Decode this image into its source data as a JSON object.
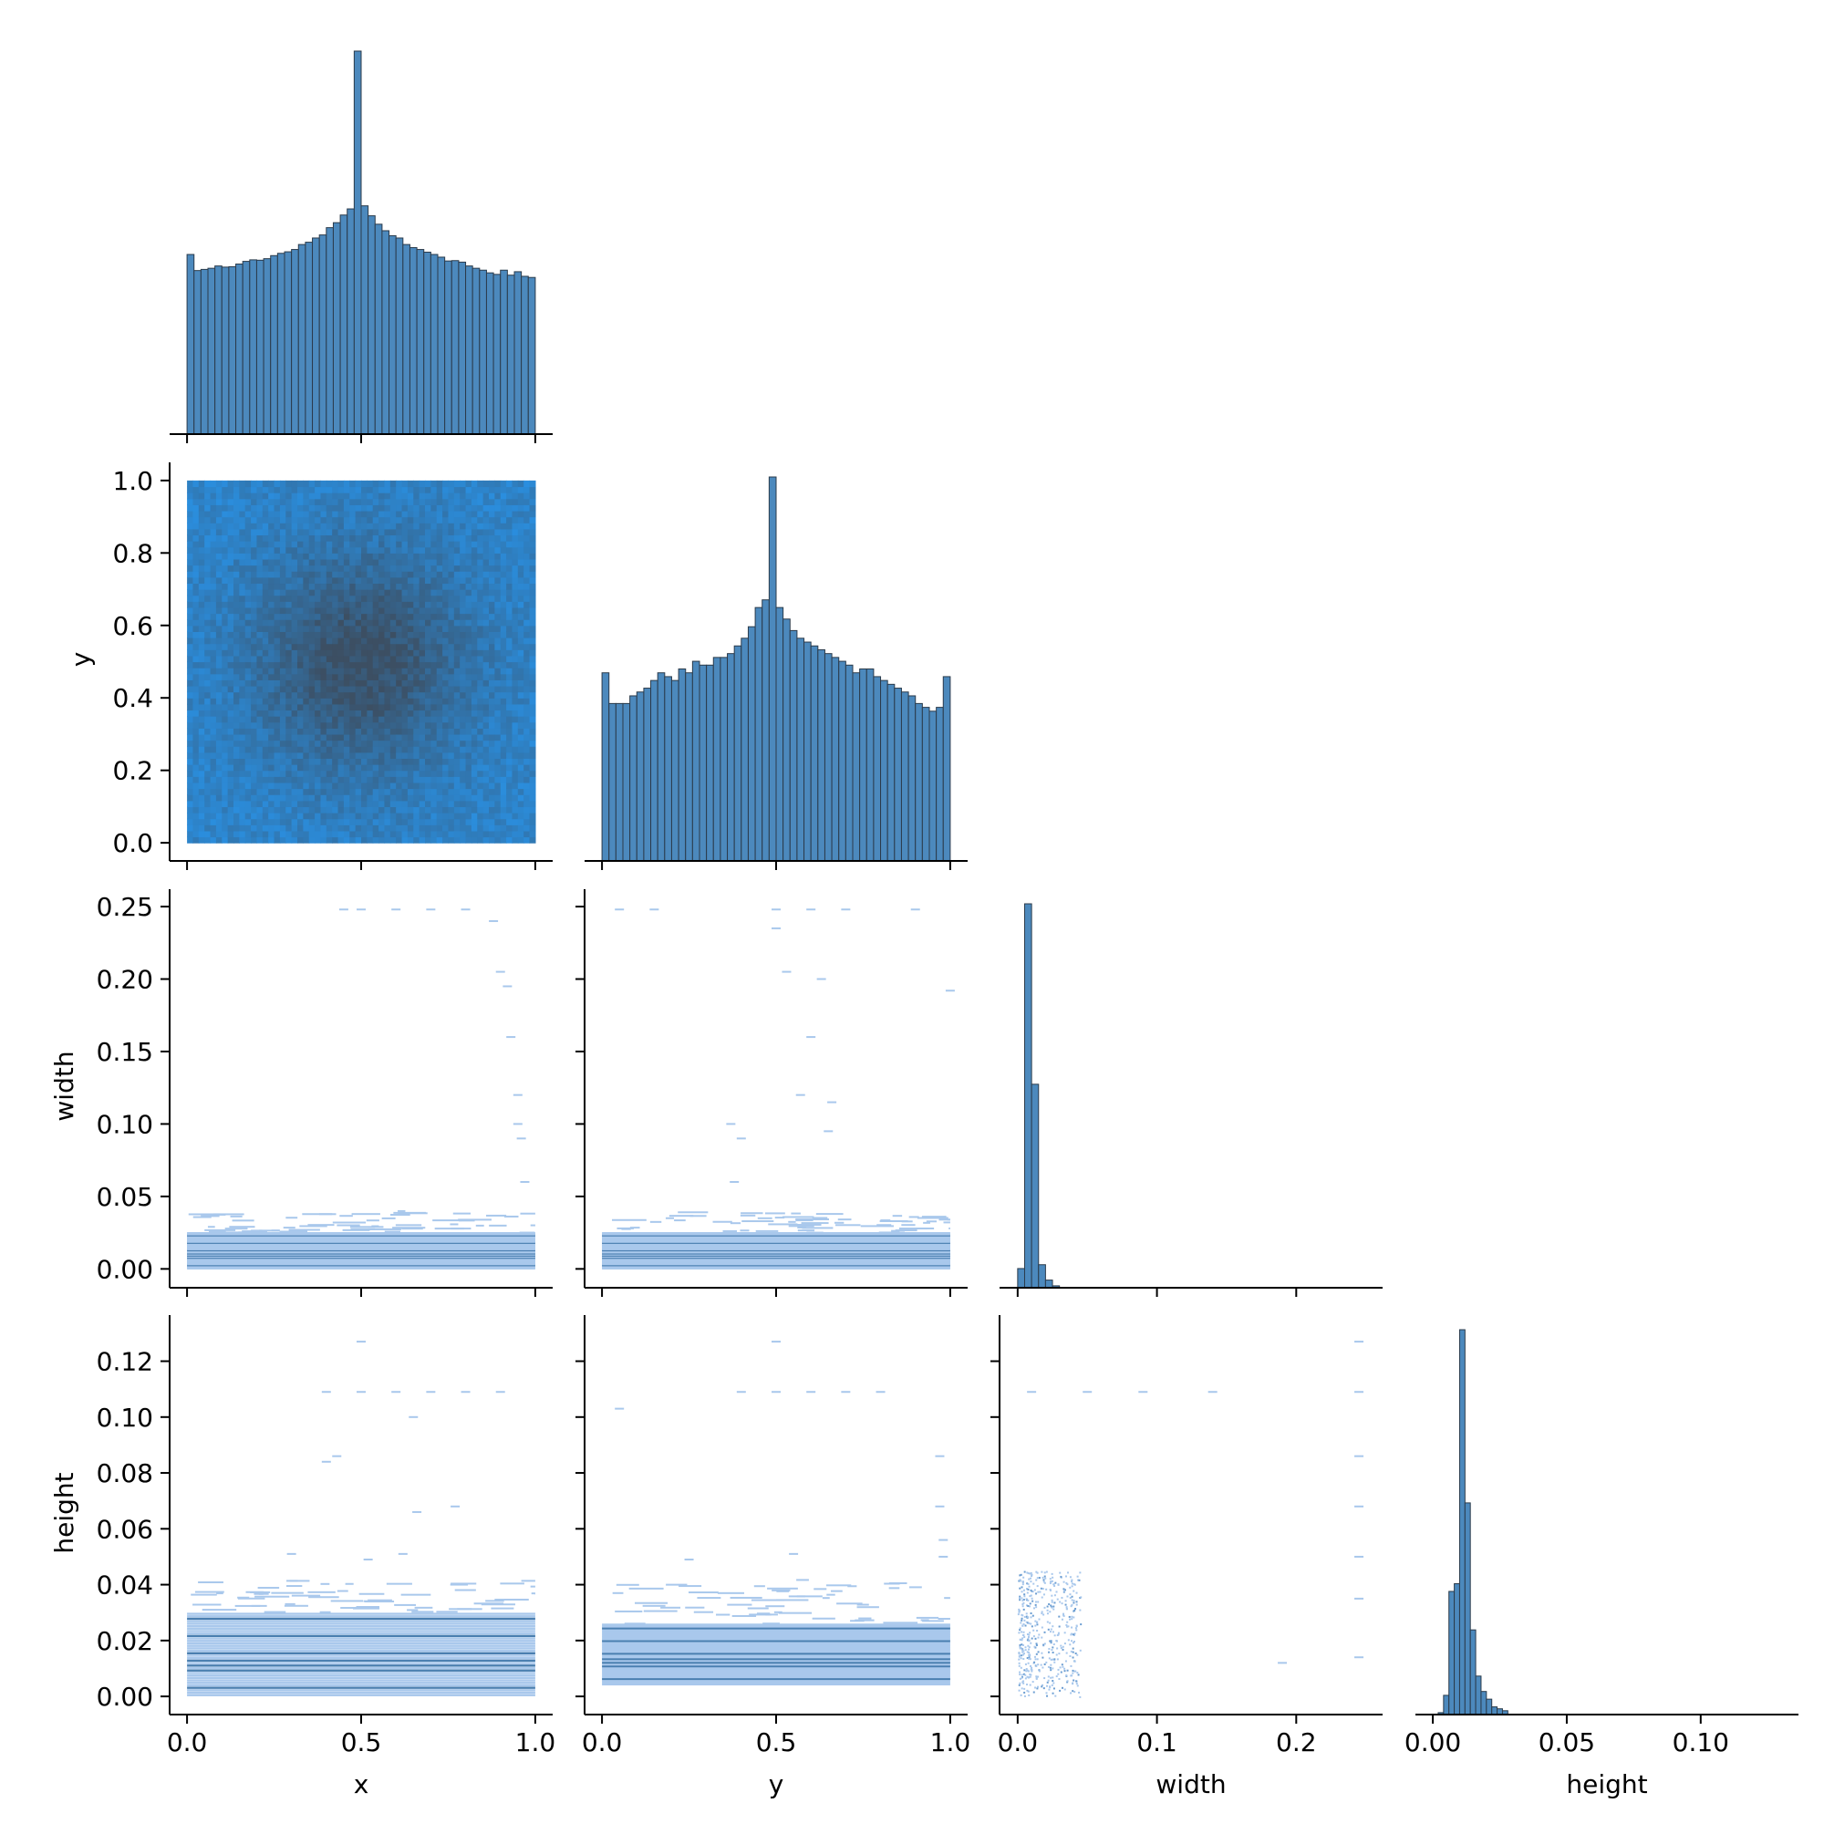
{
  "chart_data": {
    "type": "pairplot",
    "variables": [
      "x",
      "y",
      "width",
      "height"
    ],
    "colors": {
      "bar": "#4c89bd",
      "dark": "#3c4f63",
      "bright": "#2a8fe0",
      "light": "#a9c8ec",
      "axis": "#000000"
    },
    "x_ticks": {
      "x": [
        "0.0",
        "0.5",
        "1.0"
      ],
      "y": [
        "0.0",
        "0.5",
        "1.0"
      ],
      "width": [
        "0.0",
        "0.1",
        "0.2"
      ],
      "height": [
        "0.00",
        "0.05",
        "0.10"
      ]
    },
    "y_ticks": {
      "y": [
        "1.0",
        "0.8",
        "0.6",
        "0.4",
        "0.2",
        "0.0"
      ],
      "width": [
        "0.25",
        "0.20",
        "0.15",
        "0.10",
        "0.05",
        "0.00"
      ],
      "height": [
        "0.12",
        "0.10",
        "0.08",
        "0.06",
        "0.04",
        "0.02",
        "0.00"
      ]
    },
    "axis_ranges": {
      "x": [
        -0.05,
        1.05
      ],
      "y": [
        -0.05,
        1.05
      ],
      "width": [
        -0.013,
        0.262
      ],
      "height": [
        -0.0065,
        0.1365
      ]
    },
    "hist_x": {
      "variable": "x",
      "bins": 50,
      "range": [
        0,
        1
      ],
      "values": [
        0.469,
        0.427,
        0.43,
        0.433,
        0.439,
        0.436,
        0.437,
        0.444,
        0.451,
        0.455,
        0.454,
        0.458,
        0.466,
        0.472,
        0.476,
        0.482,
        0.495,
        0.501,
        0.512,
        0.52,
        0.539,
        0.552,
        0.572,
        0.588,
        1.0,
        0.596,
        0.57,
        0.548,
        0.531,
        0.518,
        0.512,
        0.495,
        0.487,
        0.482,
        0.475,
        0.469,
        0.462,
        0.452,
        0.453,
        0.449,
        0.439,
        0.433,
        0.428,
        0.421,
        0.417,
        0.428,
        0.415,
        0.424,
        0.412,
        0.409
      ]
    },
    "hist_y": {
      "variable": "y",
      "bins": 50,
      "range": [
        0,
        1
      ],
      "values": [
        0.49,
        0.41,
        0.41,
        0.41,
        0.43,
        0.44,
        0.45,
        0.47,
        0.49,
        0.48,
        0.47,
        0.5,
        0.49,
        0.52,
        0.51,
        0.51,
        0.53,
        0.53,
        0.54,
        0.56,
        0.58,
        0.61,
        0.66,
        0.68,
        1.0,
        0.66,
        0.63,
        0.6,
        0.58,
        0.57,
        0.56,
        0.55,
        0.54,
        0.53,
        0.52,
        0.51,
        0.49,
        0.5,
        0.5,
        0.48,
        0.47,
        0.46,
        0.45,
        0.44,
        0.43,
        0.41,
        0.4,
        0.39,
        0.4,
        0.48
      ]
    },
    "hist_width": {
      "variable": "width",
      "bins_x": [
        0.0,
        0.005,
        0.01,
        0.015,
        0.02,
        0.025,
        0.03
      ],
      "values": [
        0.05,
        1.0,
        0.53,
        0.06,
        0.02,
        0.005
      ]
    },
    "hist_height": {
      "variable": "height",
      "bins_x": [
        0.002,
        0.004,
        0.006,
        0.008,
        0.01,
        0.012,
        0.014,
        0.016,
        0.018,
        0.02,
        0.022,
        0.024,
        0.026,
        0.028
      ],
      "values": [
        0.005,
        0.05,
        0.32,
        0.34,
        1.0,
        0.55,
        0.22,
        0.1,
        0.06,
        0.04,
        0.02,
        0.015,
        0.01
      ]
    },
    "heatmap_xy": {
      "x_var": "x",
      "y_var": "y",
      "range_x": [
        0,
        1
      ],
      "range_y": [
        0,
        1
      ],
      "peak": [
        0.5,
        0.5
      ]
    },
    "bands": [
      {
        "x_var": "x",
        "y_var": "width",
        "dense_y": [
          0.0,
          0.025
        ],
        "sparse_y": [
          0.025,
          0.04
        ],
        "outliers": [
          [
            0.45,
            0.248
          ],
          [
            0.5,
            0.248
          ],
          [
            0.6,
            0.248
          ],
          [
            0.7,
            0.248
          ],
          [
            0.8,
            0.248
          ],
          [
            0.88,
            0.24
          ],
          [
            0.9,
            0.205
          ],
          [
            0.92,
            0.195
          ],
          [
            0.93,
            0.16
          ],
          [
            0.95,
            0.12
          ],
          [
            0.95,
            0.1
          ],
          [
            0.96,
            0.09
          ],
          [
            0.97,
            0.06
          ]
        ]
      },
      {
        "x_var": "y",
        "y_var": "width",
        "dense_y": [
          0.0,
          0.025
        ],
        "sparse_y": [
          0.025,
          0.04
        ],
        "outliers": [
          [
            0.05,
            0.248
          ],
          [
            0.15,
            0.248
          ],
          [
            0.5,
            0.248
          ],
          [
            0.6,
            0.248
          ],
          [
            0.7,
            0.248
          ],
          [
            0.9,
            0.248
          ],
          [
            0.5,
            0.235
          ],
          [
            0.53,
            0.205
          ],
          [
            0.63,
            0.2
          ],
          [
            0.6,
            0.16
          ],
          [
            0.57,
            0.12
          ],
          [
            0.66,
            0.115
          ],
          [
            0.37,
            0.1
          ],
          [
            0.65,
            0.095
          ],
          [
            0.4,
            0.09
          ],
          [
            0.38,
            0.06
          ],
          [
            1.0,
            0.192
          ]
        ]
      },
      {
        "x_var": "x",
        "y_var": "height",
        "dense_y": [
          0.0,
          0.03
        ],
        "sparse_y": [
          0.03,
          0.042
        ],
        "outliers": [
          [
            0.4,
            0.109
          ],
          [
            0.5,
            0.109
          ],
          [
            0.6,
            0.109
          ],
          [
            0.7,
            0.109
          ],
          [
            0.8,
            0.109
          ],
          [
            0.9,
            0.109
          ],
          [
            0.5,
            0.127
          ],
          [
            0.65,
            0.1
          ],
          [
            0.4,
            0.084
          ],
          [
            0.43,
            0.086
          ],
          [
            0.77,
            0.068
          ],
          [
            0.66,
            0.066
          ],
          [
            0.3,
            0.051
          ],
          [
            0.52,
            0.049
          ],
          [
            0.62,
            0.051
          ]
        ]
      },
      {
        "x_var": "y",
        "y_var": "height",
        "dense_y": [
          0.004,
          0.026
        ],
        "sparse_y": [
          0.026,
          0.042
        ],
        "outliers": [
          [
            0.4,
            0.109
          ],
          [
            0.5,
            0.109
          ],
          [
            0.6,
            0.109
          ],
          [
            0.7,
            0.109
          ],
          [
            0.8,
            0.109
          ],
          [
            0.05,
            0.103
          ],
          [
            0.5,
            0.127
          ],
          [
            0.97,
            0.086
          ],
          [
            0.97,
            0.068
          ],
          [
            0.98,
            0.056
          ],
          [
            0.98,
            0.05
          ],
          [
            0.55,
            0.051
          ],
          [
            0.25,
            0.049
          ]
        ]
      },
      {
        "x_var": "width",
        "y_var": "height",
        "dense_y": [
          0.0,
          0.045
        ],
        "sparse_y": [
          0.045,
          0.05
        ],
        "cluster_x": [
          0.0,
          0.045
        ],
        "outliers": [
          [
            0.01,
            0.109
          ],
          [
            0.05,
            0.109
          ],
          [
            0.09,
            0.109
          ],
          [
            0.14,
            0.109
          ],
          [
            0.245,
            0.109
          ],
          [
            0.245,
            0.127
          ],
          [
            0.245,
            0.086
          ],
          [
            0.245,
            0.068
          ],
          [
            0.245,
            0.05
          ],
          [
            0.245,
            0.035
          ],
          [
            0.245,
            0.014
          ],
          [
            0.19,
            0.012
          ]
        ]
      }
    ]
  }
}
